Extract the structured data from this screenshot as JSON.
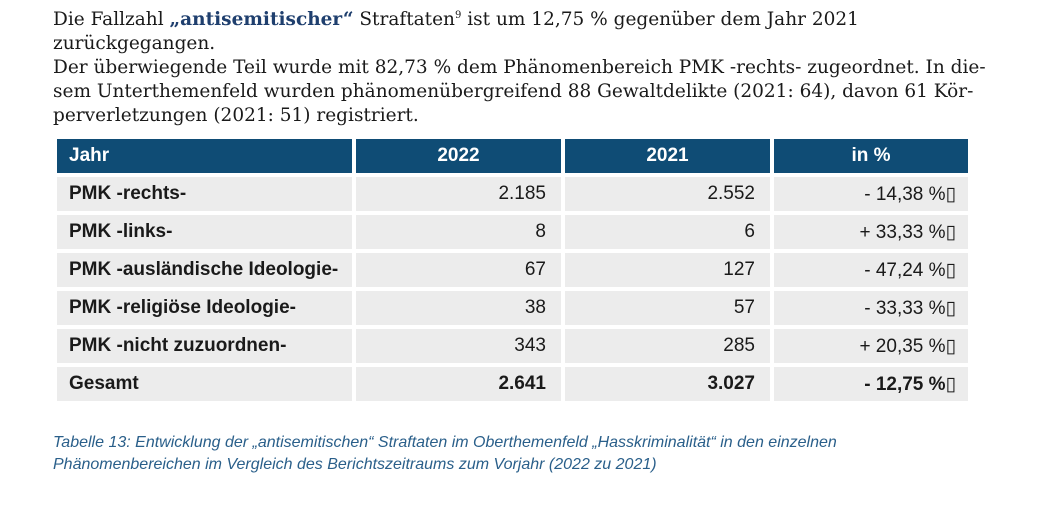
{
  "intro": {
    "lines": [
      {
        "before": "Die Fallzahl ",
        "highlight": "„antisemitischer“",
        "after_highlight": " Straftaten",
        "footnote": "9",
        "rest": " ist um 12,75 % gegenüber dem Jahr 2021 zurückgegangen."
      },
      "Der überwiegende Teil wurde mit 82,73 % dem Phänomenbereich PMK -rechts- zugeordnet. In die-",
      "sem Unterthemenfeld wurden phänomenübergreifend 88 Gewaltdelikte (2021: 64), davon 61 Kör-",
      "perverletzungen (2021: 51) registriert."
    ]
  },
  "table": {
    "headers": [
      "Jahr",
      "2022",
      "2021",
      "in %"
    ],
    "rows": [
      [
        "PMK -rechts-",
        "2.185",
        "2.552",
        "- 14,38 %▯"
      ],
      [
        "PMK -links-",
        "8",
        "6",
        "+ 33,33 %▯"
      ],
      [
        "PMK -ausländische Ideologie-",
        "67",
        "127",
        "- 47,24 %▯"
      ],
      [
        "PMK -religiöse Ideologie-",
        "38",
        "57",
        "- 33,33 %▯"
      ],
      [
        "PMK -nicht zuzuordnen-",
        "343",
        "285",
        "+ 20,35 %▯"
      ],
      [
        "Gesamt",
        "2.641",
        "3.027",
        "- 12,75 %▯"
      ]
    ],
    "colors": {
      "header_bg": "#0f4c75",
      "header_text": "#ffffff",
      "row_bg": "#ececec"
    }
  },
  "caption": {
    "line1": "Tabelle 13: Entwicklung der „antisemitischen“ Straftaten im Oberthemenfeld „Hasskriminalität“ in den einzelnen",
    "line2": "Phänomenbereichen im Vergleich des Berichtszeitraums zum Vorjahr (2022 zu 2021)"
  }
}
